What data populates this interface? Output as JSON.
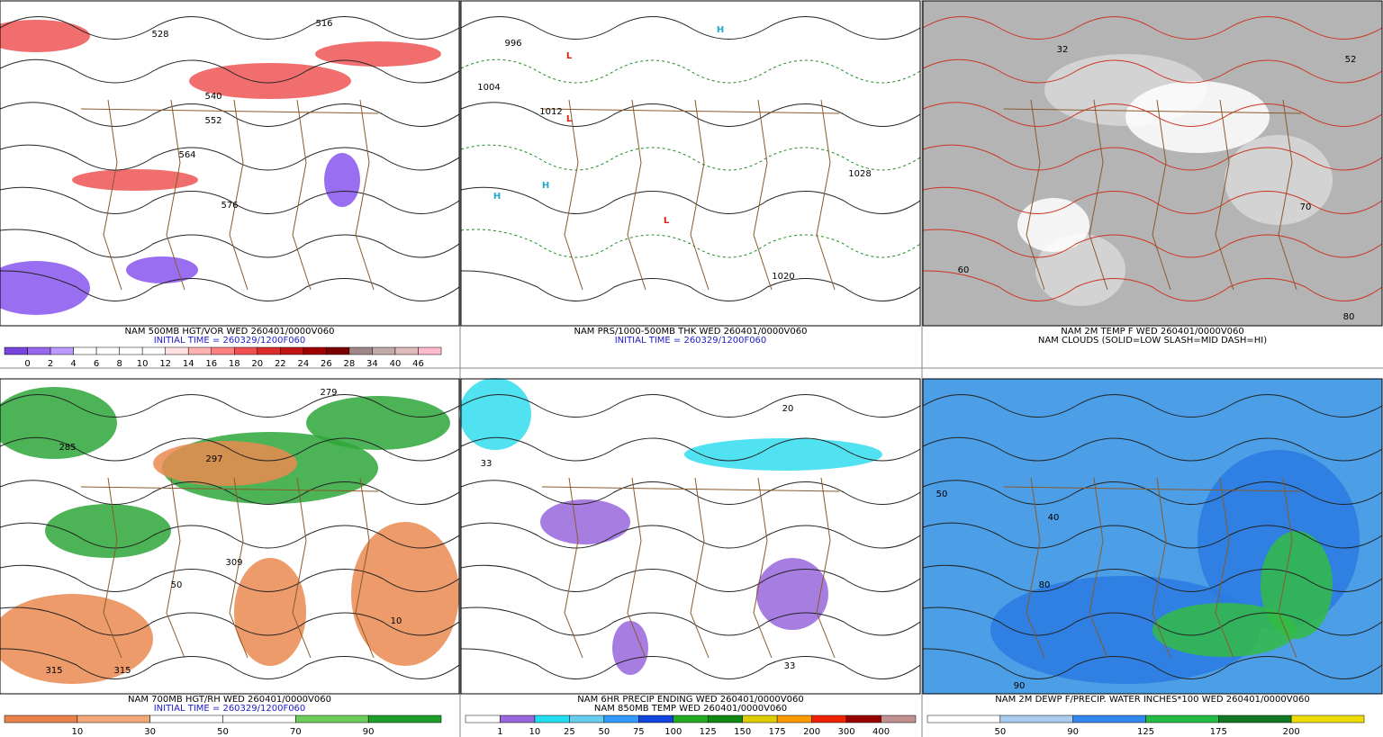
{
  "panels": [
    {
      "captions": [
        "NAM 500MB HGT/VOR WED 260401/0000V060",
        "INITIAL TIME = 260329/1200F060"
      ],
      "colorbar": {
        "labels": [
          "0",
          "2",
          "4",
          "6",
          "8",
          "10",
          "12",
          "14",
          "16",
          "18",
          "20",
          "22",
          "24",
          "26",
          "28",
          "34",
          "40",
          "46"
        ],
        "colors": [
          "#7744dd",
          "#9966ee",
          "#bb99ff",
          "#ffffff",
          "#ffffff",
          "#ffffff",
          "#ffffff",
          "#ffe0e0",
          "#ffb0b0",
          "#ff8080",
          "#f05050",
          "#dd2a2a",
          "#c01515",
          "#a00000",
          "#7a0000",
          "#a08888",
          "#c0aaaa",
          "#e0bbbb",
          "#ffbbcc"
        ]
      },
      "labels": [
        "516",
        "528",
        "540",
        "552",
        "564",
        "576"
      ]
    },
    {
      "captions": [
        "NAM PRS/1000-500MB THK WED 260401/0000V060",
        "INITIAL TIME = 260329/1200F060"
      ],
      "labels": [
        "996",
        "1004",
        "1012",
        "1020",
        "1028",
        "L",
        "L",
        "L",
        "H",
        "H",
        "H"
      ]
    },
    {
      "captions": [
        "NAM 2M TEMP F WED 260401/0000V060",
        "NAM CLOUDS (SOLID=LOW SLASH=MID DASH=HI)"
      ],
      "labels": [
        "32",
        "52",
        "80",
        "60",
        "70"
      ]
    },
    {
      "captions": [
        "NAM 700MB HGT/RH WED 260401/0000V060",
        "INITIAL TIME = 260329/1200F060"
      ],
      "colorbar": {
        "labels": [
          "10",
          "30",
          "50",
          "70",
          "90"
        ],
        "colors": [
          "#e8824a",
          "#f2a878",
          "#ffffff",
          "#ffffff",
          "#6ecc5a",
          "#1e9e2a"
        ]
      },
      "labels": [
        "279",
        "285",
        "297",
        "309",
        "315",
        "315",
        "50",
        "10"
      ]
    },
    {
      "captions": [
        "NAM 6HR PRECIP ENDING WED 260401/0000V060",
        "NAM 850MB TEMP WED 260401/0000V060"
      ],
      "colorbar": {
        "labels": [
          "1",
          "10",
          "25",
          "50",
          "75",
          "100",
          "125",
          "150",
          "175",
          "200",
          "300",
          "400"
        ],
        "colors": [
          "#ffffff",
          "#9966dd",
          "#22ddee",
          "#66ccee",
          "#3399ff",
          "#1144dd",
          "#22aa22",
          "#118811",
          "#ddcc00",
          "#ff9900",
          "#ee2200",
          "#990000",
          "#c09090"
        ]
      },
      "labels": [
        "33",
        "33",
        "20"
      ]
    },
    {
      "captions": [
        "NAM 2M DEWP F/PRECIP. WATER INCHES*100 WED 260401/0000V060"
      ],
      "colorbar": {
        "labels": [
          "50",
          "90",
          "125",
          "175",
          "200"
        ],
        "colors": [
          "#ffffff",
          "#aaccee",
          "#3388ee",
          "#22bb44",
          "#117722",
          "#eedd00"
        ]
      },
      "labels": [
        "50",
        "40",
        "80",
        "90"
      ]
    }
  ]
}
